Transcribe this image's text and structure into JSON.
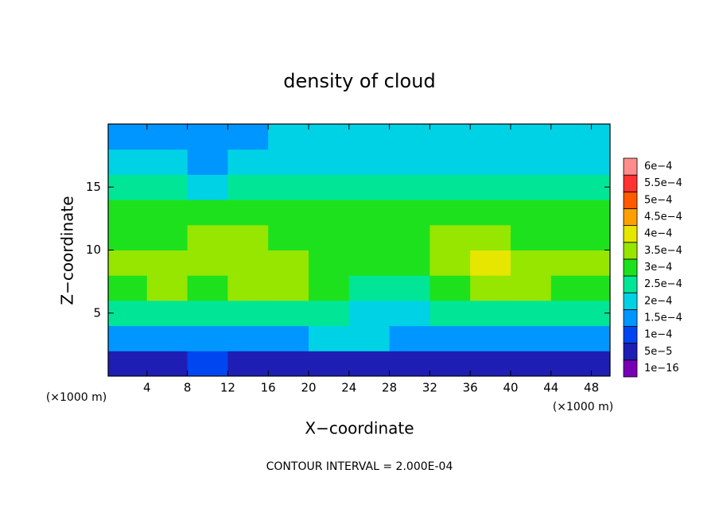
{
  "chart_data": {
    "type": "heatmap",
    "title": "density of cloud",
    "x_label": "X−coordinate",
    "y_label": "Z−coordinate",
    "x_unit": "(×1000 m)",
    "y_unit": "(×1000 m)",
    "footer": "CONTOUR INTERVAL = 2.000E-04",
    "xlim": [
      0,
      50
    ],
    "ylim": [
      0,
      20
    ],
    "xticks": [
      4,
      8,
      12,
      16,
      20,
      24,
      28,
      32,
      36,
      40,
      44,
      48
    ],
    "yticks": [
      5,
      10,
      15
    ],
    "x": [
      2,
      6,
      10,
      14,
      18,
      22,
      26,
      30,
      34,
      38,
      42,
      46,
      50
    ],
    "y": [
      1,
      3,
      5,
      7,
      9,
      11,
      13,
      15,
      17,
      19
    ],
    "z": [
      [
        5e-05,
        5e-05,
        0.0001,
        5e-05,
        5e-05,
        5e-05,
        5e-05,
        5e-05,
        5e-05,
        5e-05,
        5e-05,
        5e-05,
        5e-05
      ],
      [
        0.00015,
        0.00015,
        0.00015,
        0.00015,
        0.00015,
        0.0002,
        0.0002,
        0.00015,
        0.00015,
        0.00015,
        0.00015,
        0.00015,
        0.00015
      ],
      [
        0.00025,
        0.00025,
        0.00025,
        0.00025,
        0.00025,
        0.00025,
        0.0002,
        0.0002,
        0.00025,
        0.00025,
        0.00025,
        0.00025,
        0.00025
      ],
      [
        0.0003,
        0.00035,
        0.0003,
        0.00035,
        0.00035,
        0.0003,
        0.00025,
        0.00025,
        0.0003,
        0.00035,
        0.00035,
        0.0003,
        0.0003
      ],
      [
        0.00035,
        0.00035,
        0.00035,
        0.00035,
        0.00035,
        0.0003,
        0.0003,
        0.0003,
        0.00035,
        0.0004,
        0.00035,
        0.00035,
        0.00035
      ],
      [
        0.0003,
        0.0003,
        0.00035,
        0.00035,
        0.0003,
        0.0003,
        0.0003,
        0.0003,
        0.00035,
        0.00035,
        0.0003,
        0.0003,
        0.0003
      ],
      [
        0.0003,
        0.0003,
        0.0003,
        0.0003,
        0.0003,
        0.0003,
        0.0003,
        0.0003,
        0.0003,
        0.0003,
        0.0003,
        0.0003,
        0.0003
      ],
      [
        0.00025,
        0.00025,
        0.0002,
        0.00025,
        0.00025,
        0.00025,
        0.00025,
        0.00025,
        0.00025,
        0.00025,
        0.00025,
        0.00025,
        0.00025
      ],
      [
        0.0002,
        0.0002,
        0.00015,
        0.0002,
        0.0002,
        0.0002,
        0.0002,
        0.0002,
        0.0002,
        0.0002,
        0.0002,
        0.0002,
        0.0002
      ],
      [
        0.00015,
        0.00015,
        0.00015,
        0.00015,
        0.0002,
        0.0002,
        0.0002,
        0.0002,
        0.0002,
        0.0002,
        0.0002,
        0.0002,
        0.0002
      ]
    ],
    "levels": [
      {
        "value": 1e-16,
        "label": "1e−16"
      },
      {
        "value": 5e-05,
        "label": "5e−5"
      },
      {
        "value": 0.0001,
        "label": "1e−4"
      },
      {
        "value": 0.00015,
        "label": "1.5e−4"
      },
      {
        "value": 0.0002,
        "label": "2e−4"
      },
      {
        "value": 0.00025,
        "label": "2.5e−4"
      },
      {
        "value": 0.0003,
        "label": "3e−4"
      },
      {
        "value": 0.00035,
        "label": "3.5e−4"
      },
      {
        "value": 0.0004,
        "label": "4e−4"
      },
      {
        "value": 0.00045,
        "label": "4.5e−4"
      },
      {
        "value": 0.0005,
        "label": "5e−4"
      },
      {
        "value": 0.00055,
        "label": "5.5e−4"
      },
      {
        "value": 0.0006,
        "label": "6e−4"
      }
    ],
    "level_colors": [
      "#7800b4",
      "#1e1eb4",
      "#0046f0",
      "#0096ff",
      "#00d2e6",
      "#00e696",
      "#1ee11e",
      "#96e600",
      "#e6e600",
      "#ffa000",
      "#ff5a00",
      "#ff3232",
      "#ff8c8c"
    ]
  }
}
